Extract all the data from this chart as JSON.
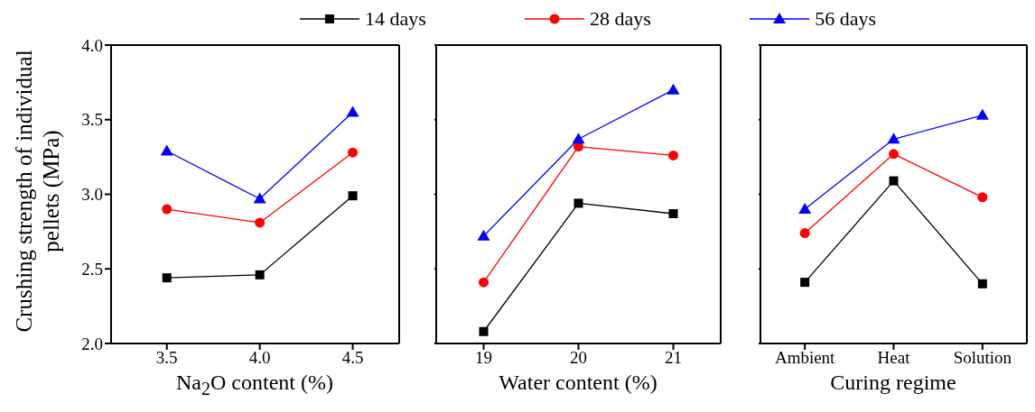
{
  "chart_data": [
    {
      "type": "line",
      "xlabel": "Na$_{2}$O content (%)",
      "ylabel": "Crushing strength of individual pellets (MPa)",
      "x": [
        3.5,
        4.0,
        4.5
      ],
      "xlim": [
        3.2,
        4.75
      ],
      "xticks": [
        {
          "value": 3.5,
          "label": "3.5"
        },
        {
          "value": 4.0,
          "label": "4.0"
        },
        {
          "value": 4.5,
          "label": "4.5"
        }
      ],
      "ylim": [
        2.0,
        4.0
      ],
      "yticks": [
        {
          "value": 2.0,
          "label": "2.0"
        },
        {
          "value": 2.5,
          "label": "2.5"
        },
        {
          "value": 3.0,
          "label": "3.0"
        },
        {
          "value": 3.5,
          "label": "3.5"
        },
        {
          "value": 4.0,
          "label": "4.0"
        }
      ],
      "legend": "top",
      "grid": false,
      "series": [
        {
          "name": "14 days",
          "color": "#000000",
          "marker": "square",
          "values": [
            2.44,
            2.46,
            2.99
          ]
        },
        {
          "name": "28 days",
          "color": "#ff0000",
          "marker": "circle",
          "values": [
            2.9,
            2.81,
            3.28
          ]
        },
        {
          "name": "56 days",
          "color": "#0000ff",
          "marker": "triangle",
          "values": [
            3.29,
            2.97,
            3.55
          ]
        }
      ]
    },
    {
      "type": "line",
      "xlabel": "Water content (%)",
      "x": [
        19,
        20,
        21
      ],
      "xlim": [
        18.5,
        21.5
      ],
      "xticks": [
        19,
        20,
        21
      ],
      "ylim": [
        2.0,
        4.0
      ],
      "yticks": [
        2,
        2.5,
        3,
        3.5,
        4
      ],
      "tick_labels": "x",
      "grid": false,
      "series": [
        {
          "color": "#000000",
          "marker": "square",
          "values": [
            2.08,
            2.94,
            2.87
          ]
        },
        {
          "color": "#ff0000",
          "marker": "circle",
          "values": [
            2.41,
            3.32,
            3.26
          ]
        },
        {
          "color": "#0000ff",
          "marker": "triangle",
          "values": [
            2.72,
            3.37,
            3.7
          ]
        }
      ]
    },
    {
      "type": "line",
      "xlabel": "Curing regime",
      "categories": [
        "Ambient",
        "Heat",
        "Solution"
      ],
      "ylim": [
        2.0,
        4.0
      ],
      "yticks": [
        2,
        2.5,
        3,
        3.5,
        4
      ],
      "tick_labels": "x",
      "grid": false,
      "series": [
        {
          "color": "#000000",
          "marker": "square",
          "values": [
            2.41,
            3.09,
            2.4
          ]
        },
        {
          "color": "#ff0000",
          "marker": "circle",
          "values": [
            2.74,
            3.27,
            2.98
          ]
        },
        {
          "color": "#0000ff",
          "marker": "triangle",
          "values": [
            2.9,
            3.37,
            3.53
          ]
        }
      ]
    }
  ]
}
